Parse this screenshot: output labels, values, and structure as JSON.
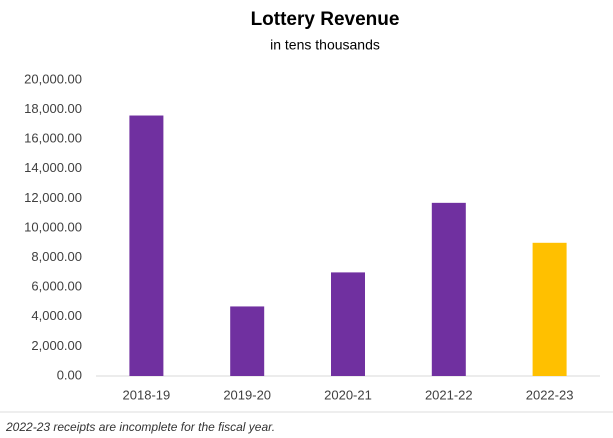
{
  "chart_data": {
    "type": "bar",
    "title": "Lottery Revenue",
    "subtitle": "in tens thousands",
    "categories": [
      "2018-19",
      "2019-20",
      "2020-21",
      "2021-22",
      "2022-23"
    ],
    "values": [
      17600,
      4700,
      7000,
      11700,
      9000
    ],
    "colors": [
      "#7030a0",
      "#7030a0",
      "#7030a0",
      "#7030a0",
      "#ffc000"
    ],
    "ylim": [
      0,
      20000
    ],
    "yticks": [
      {
        "value": 0,
        "label": "0.00"
      },
      {
        "value": 2000,
        "label": "2,000.00"
      },
      {
        "value": 4000,
        "label": "4,000.00"
      },
      {
        "value": 6000,
        "label": "6,000.00"
      },
      {
        "value": 8000,
        "label": "8,000.00"
      },
      {
        "value": 10000,
        "label": "10,000.00"
      },
      {
        "value": 12000,
        "label": "12,000.00"
      },
      {
        "value": 14000,
        "label": "14,000.00"
      },
      {
        "value": 16000,
        "label": "16,000.00"
      },
      {
        "value": 18000,
        "label": "18,000.00"
      },
      {
        "value": 20000,
        "label": "20,000.00"
      }
    ],
    "grid": false,
    "annotation": "2022-23 receipts are incomplete for the fiscal year."
  }
}
